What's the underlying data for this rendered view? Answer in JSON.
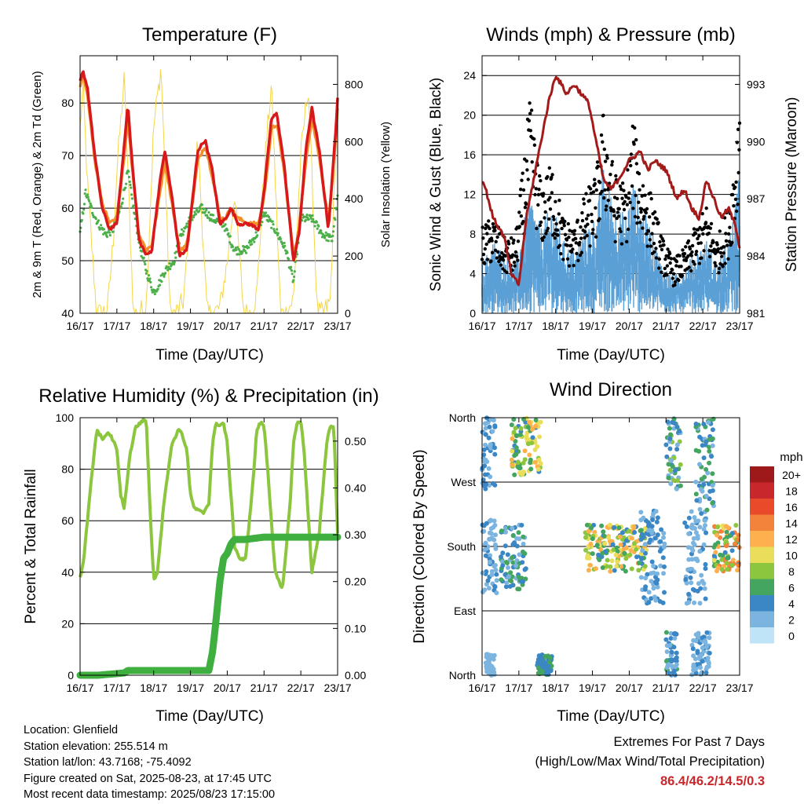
{
  "chart_data": [
    {
      "id": "temperature",
      "type": "line",
      "title": "Temperature (F)",
      "xlabel": "Time (Day/UTC)",
      "ylabel_left": "2m & 9m T (Red, Orange) & 2m Td (Green)",
      "ylabel_right": "Solar Insolation (Yellow)",
      "x_ticks": [
        "16/17",
        "17/17",
        "18/17",
        "19/17",
        "20/17",
        "21/17",
        "22/17",
        "23/17"
      ],
      "ylim_left": [
        40,
        89
      ],
      "yticks_left": [
        40,
        50,
        60,
        70,
        80
      ],
      "ylim_right": [
        0,
        900
      ],
      "yticks_right": [
        0,
        200,
        400,
        600,
        800
      ],
      "grid": true,
      "colors": {
        "t2m": "#d7191c",
        "t9m": "#f28e2b",
        "td2m": "#4daf4a",
        "solar": "#f5d547"
      },
      "series": [
        {
          "key": "t2m",
          "x": [
            0,
            0.08,
            0.2,
            0.4,
            0.6,
            0.8,
            1.0,
            1.2,
            1.3,
            1.4,
            1.6,
            1.8,
            1.95,
            2.15,
            2.3,
            2.5,
            2.7,
            2.9,
            3.0,
            3.2,
            3.4,
            3.6,
            3.8,
            3.95,
            4.1,
            4.3,
            4.6,
            4.85,
            5.0,
            5.2,
            5.35,
            5.55,
            5.8,
            5.95,
            6.15,
            6.3,
            6.5,
            6.75,
            6.95,
            7.0
          ],
          "values": [
            84,
            86,
            83,
            70,
            60,
            56,
            57,
            72,
            80,
            70,
            54,
            51,
            52,
            64,
            71,
            62,
            51,
            52,
            58,
            71,
            73,
            67,
            57,
            58,
            60,
            57,
            57,
            56,
            63,
            77,
            78,
            68,
            50,
            55,
            72,
            79,
            71,
            56,
            75,
            81
          ]
        },
        {
          "key": "t9m",
          "x": [
            0,
            0.08,
            0.2,
            0.4,
            0.6,
            0.8,
            1.0,
            1.2,
            1.3,
            1.4,
            1.6,
            1.8,
            1.95,
            2.15,
            2.3,
            2.5,
            2.7,
            2.9,
            3.0,
            3.2,
            3.4,
            3.6,
            3.8,
            3.95,
            4.1,
            4.3,
            4.6,
            4.85,
            5.0,
            5.2,
            5.35,
            5.55,
            5.8,
            5.95,
            6.15,
            6.3,
            6.5,
            6.75,
            6.95,
            7.0
          ],
          "values": [
            83,
            85,
            82,
            69,
            61,
            57,
            58,
            70,
            77,
            69,
            55,
            52,
            53,
            62,
            69,
            61,
            52,
            53,
            58,
            69,
            72,
            66,
            58,
            58,
            60,
            58,
            57,
            57,
            62,
            75,
            76,
            67,
            51,
            56,
            70,
            77,
            70,
            57,
            73,
            79
          ]
        },
        {
          "key": "td2m",
          "x": [
            0,
            0.15,
            0.3,
            0.5,
            0.7,
            0.9,
            1.1,
            1.3,
            1.45,
            1.65,
            1.8,
            2.0,
            2.1,
            2.3,
            2.55,
            2.75,
            3.0,
            3.3,
            3.6,
            3.9,
            4.2,
            4.5,
            4.8,
            5.0,
            5.3,
            5.6,
            5.8,
            6.0,
            6.3,
            6.6,
            6.85,
            7.0
          ],
          "values": [
            55,
            63,
            60,
            57,
            55,
            56,
            60,
            67,
            60,
            52,
            48,
            44,
            45,
            48,
            50,
            55,
            58,
            60,
            58,
            57,
            52,
            52,
            55,
            59,
            56,
            52,
            46,
            58,
            58,
            55,
            54,
            62
          ]
        },
        {
          "key": "solar",
          "x": [
            0,
            0.08,
            0.2,
            0.45,
            0.6,
            0.75,
            0.9,
            1.0,
            1.2,
            1.45,
            1.6,
            1.8,
            2.0,
            2.2,
            2.45,
            2.6,
            2.8,
            3.0,
            3.2,
            3.45,
            3.6,
            3.8,
            4.0,
            4.2,
            4.45,
            4.6,
            4.8,
            5.0,
            5.2,
            5.45,
            5.6,
            5.8,
            6.0,
            6.2,
            6.45,
            6.6,
            6.8,
            7.0
          ],
          "values": [
            650,
            790,
            450,
            0,
            0,
            20,
            250,
            500,
            820,
            0,
            0,
            30,
            650,
            860,
            0,
            0,
            40,
            320,
            600,
            0,
            0,
            20,
            180,
            420,
            0,
            0,
            60,
            500,
            800,
            0,
            0,
            50,
            550,
            800,
            0,
            0,
            40,
            760
          ]
        }
      ]
    },
    {
      "id": "winds",
      "type": "scatter",
      "title": "Winds (mph) & Pressure (mb)",
      "xlabel": "Time (Day/UTC)",
      "ylabel_left": "Sonic Wind & Gust (Blue, Black)",
      "ylabel_right": "Station Pressure (Maroon)",
      "x_ticks": [
        "16/17",
        "17/17",
        "18/17",
        "19/17",
        "20/17",
        "21/17",
        "22/17",
        "23/17"
      ],
      "ylim_left": [
        0,
        26
      ],
      "yticks_left": [
        0,
        4,
        8,
        12,
        16,
        20,
        24
      ],
      "ylim_right": [
        981,
        994.5
      ],
      "yticks_right": [
        981,
        984,
        987,
        990,
        993
      ],
      "grid": true,
      "colors": {
        "wind": "#5aa0d6",
        "gust": "#000000",
        "pressure": "#a31a1a"
      },
      "wind_envelope": {
        "x": [
          0,
          0.3,
          0.6,
          0.9,
          1.1,
          1.3,
          1.6,
          1.9,
          2.2,
          2.5,
          2.8,
          3.1,
          3.3,
          3.6,
          3.9,
          4.1,
          4.3,
          4.6,
          4.9,
          5.2,
          5.5,
          5.8,
          6.1,
          6.4,
          6.7,
          6.9,
          7.0
        ],
        "values": [
          4,
          6,
          5,
          4,
          7,
          10,
          7,
          9,
          6,
          5,
          7,
          8,
          12,
          9,
          8,
          11,
          9,
          7,
          4,
          3,
          4,
          5,
          6,
          4,
          6,
          9,
          12
        ]
      },
      "gust_envelope": {
        "x": [
          0,
          0.3,
          0.6,
          0.9,
          1.1,
          1.3,
          1.6,
          1.9,
          2.2,
          2.5,
          2.8,
          3.1,
          3.3,
          3.6,
          3.9,
          4.1,
          4.3,
          4.6,
          4.9,
          5.2,
          5.5,
          5.8,
          6.1,
          6.4,
          6.7,
          6.9,
          7.0
        ],
        "values": [
          8,
          9,
          7,
          7,
          13,
          20,
          12,
          14,
          9,
          8,
          11,
          13,
          19,
          13,
          12,
          18,
          14,
          11,
          7,
          5,
          6,
          8,
          10,
          7,
          10,
          16,
          22
        ]
      },
      "pressure": {
        "x": [
          0,
          0.1,
          0.3,
          0.6,
          0.8,
          1.0,
          1.2,
          1.5,
          1.8,
          2.0,
          2.3,
          2.5,
          2.7,
          2.9,
          3.1,
          3.3,
          3.5,
          3.7,
          4.0,
          4.3,
          4.5,
          4.7,
          5.0,
          5.3,
          5.5,
          5.7,
          5.9,
          6.1,
          6.3,
          6.5,
          6.7,
          6.9,
          7.0
        ],
        "values": [
          988,
          987.5,
          986,
          985,
          983,
          982.5,
          986,
          989,
          992,
          993.5,
          992.5,
          993,
          992.5,
          992,
          990,
          988,
          987.5,
          988,
          989,
          989.5,
          988.5,
          989,
          988.5,
          987,
          987.5,
          986.5,
          986,
          988,
          987,
          986,
          986.5,
          985.5,
          984.5
        ]
      }
    },
    {
      "id": "humidity",
      "type": "line",
      "title": "Relative Humidity (%) & Precipitation (in)",
      "xlabel": "Time (Day/UTC)",
      "ylabel_left": "Percent & Total Rainfall",
      "x_ticks": [
        "16/17",
        "17/17",
        "18/17",
        "19/17",
        "20/17",
        "21/17",
        "22/17",
        "23/17"
      ],
      "ylim_left": [
        0,
        100
      ],
      "yticks_left": [
        0,
        20,
        40,
        60,
        80,
        100
      ],
      "ylim_right": [
        0,
        0.55
      ],
      "yticks_right": [
        "0.00",
        "0.10",
        "0.20",
        "0.30",
        "0.40",
        "0.50"
      ],
      "grid": true,
      "colors": {
        "rh": "#8cc63f",
        "precip": "#3fb03f"
      },
      "series": [
        {
          "key": "rh",
          "x": [
            0,
            0.1,
            0.3,
            0.45,
            0.6,
            0.8,
            1.0,
            1.1,
            1.2,
            1.35,
            1.5,
            1.7,
            1.8,
            1.9,
            2.0,
            2.1,
            2.3,
            2.5,
            2.7,
            2.9,
            3.0,
            3.1,
            3.2,
            3.35,
            3.5,
            3.6,
            3.7,
            3.8,
            3.9,
            4.0,
            4.1,
            4.2,
            4.35,
            4.5,
            4.7,
            4.8,
            4.9,
            5.0,
            5.1,
            5.3,
            5.5,
            5.7,
            5.8,
            5.9,
            6.0,
            6.1,
            6.3,
            6.5,
            6.7,
            6.8,
            6.9,
            7.0
          ],
          "values": [
            38,
            45,
            75,
            95,
            92,
            94,
            88,
            70,
            65,
            85,
            96,
            99,
            99,
            65,
            37,
            40,
            70,
            90,
            96,
            88,
            70,
            65,
            64,
            63,
            67,
            90,
            98,
            97,
            98,
            90,
            70,
            50,
            45,
            45,
            75,
            95,
            98,
            97,
            80,
            40,
            33,
            65,
            90,
            98,
            99,
            85,
            40,
            55,
            90,
            97,
            96,
            55
          ]
        },
        {
          "key": "precip",
          "x": [
            0,
            0.5,
            1.2,
            1.3,
            2.0,
            2.5,
            3.0,
            3.5,
            3.6,
            3.7,
            3.8,
            3.9,
            4.0,
            4.1,
            4.2,
            4.5,
            5.0,
            6.0,
            7.0
          ],
          "values": [
            0,
            0,
            0.005,
            0.01,
            0.01,
            0.01,
            0.01,
            0.01,
            0.05,
            0.12,
            0.2,
            0.25,
            0.26,
            0.28,
            0.29,
            0.29,
            0.295,
            0.295,
            0.295
          ]
        }
      ]
    },
    {
      "id": "direction",
      "type": "scatter",
      "title": "Wind Direction",
      "xlabel": "Time (Day/UTC)",
      "ylabel_left": "Direction (Colored By Speed)",
      "x_ticks": [
        "16/17",
        "17/17",
        "18/17",
        "19/17",
        "20/17",
        "21/17",
        "22/17",
        "23/17"
      ],
      "y_ticks": [
        "North",
        "East",
        "South",
        "West",
        "North"
      ],
      "ylim": [
        0,
        360
      ],
      "grid": true,
      "legend": {
        "title": "mph",
        "labels": [
          "20+",
          "18",
          "16",
          "14",
          "12",
          "10",
          "8",
          "6",
          "4",
          "2",
          "0"
        ],
        "colors": [
          "#9e1a1a",
          "#c8282b",
          "#e84a2a",
          "#f3823a",
          "#fdb04d",
          "#e9dd5a",
          "#8cc63f",
          "#43a560",
          "#3b86c4",
          "#7cb4e0",
          "#bfe3f7"
        ],
        "placement": "right"
      },
      "clusters": [
        {
          "x": [
            0.0,
            0.35
          ],
          "dir": [
            260,
            360
          ],
          "spd": [
            1,
            5
          ]
        },
        {
          "x": [
            0.0,
            0.4
          ],
          "dir": [
            110,
            220
          ],
          "spd": [
            1,
            4
          ]
        },
        {
          "x": [
            0.1,
            0.35
          ],
          "dir": [
            0,
            30
          ],
          "spd": [
            1,
            3
          ]
        },
        {
          "x": [
            0.8,
            1.6
          ],
          "dir": [
            280,
            360
          ],
          "spd": [
            4,
            12
          ]
        },
        {
          "x": [
            0.5,
            1.2
          ],
          "dir": [
            120,
            210
          ],
          "spd": [
            2,
            7
          ]
        },
        {
          "x": [
            1.5,
            1.9
          ],
          "dir": [
            0,
            30
          ],
          "spd": [
            3,
            7
          ]
        },
        {
          "x": [
            2.8,
            4.5
          ],
          "dir": [
            145,
            210
          ],
          "spd": [
            4,
            13
          ]
        },
        {
          "x": [
            4.3,
            5.0
          ],
          "dir": [
            100,
            230
          ],
          "spd": [
            1,
            5
          ]
        },
        {
          "x": [
            5.0,
            5.4
          ],
          "dir": [
            260,
            360
          ],
          "spd": [
            2,
            8
          ]
        },
        {
          "x": [
            5.0,
            5.3
          ],
          "dir": [
            0,
            60
          ],
          "spd": [
            2,
            7
          ]
        },
        {
          "x": [
            5.5,
            6.1
          ],
          "dir": [
            100,
            230
          ],
          "spd": [
            1,
            4
          ]
        },
        {
          "x": [
            5.8,
            6.3
          ],
          "dir": [
            230,
            360
          ],
          "spd": [
            2,
            7
          ]
        },
        {
          "x": [
            6.3,
            7.0
          ],
          "dir": [
            145,
            210
          ],
          "spd": [
            3,
            15
          ]
        },
        {
          "x": [
            5.7,
            6.2
          ],
          "dir": [
            0,
            60
          ],
          "spd": [
            1,
            4
          ]
        }
      ]
    }
  ],
  "station_info": {
    "location": "Location: Glenfield",
    "elevation": "Station elevation: 255.514 m",
    "latlon": "Station lat/lon: 43.7168; -75.4092",
    "created": "Figure created on Sat, 2025-08-23, at 17:45 UTC",
    "recent": "Most recent data timestamp: 2025/08/23 17:15:00"
  },
  "extremes": {
    "title": "Extremes For Past 7 Days",
    "subtitle": "(High/Low/Max Wind/Total Precipitation)",
    "values": "86.4/46.2/14.5/0.3"
  }
}
